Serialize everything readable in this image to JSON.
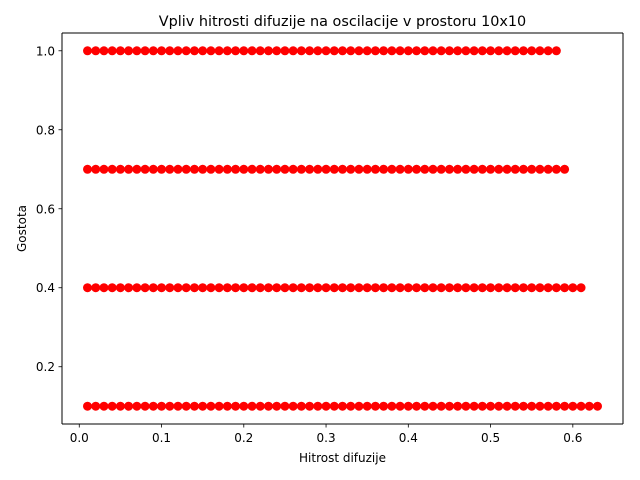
{
  "chart_data": {
    "type": "scatter",
    "title": "Vpliv hitrosti difuzije na oscilacije v prostoru 10x10",
    "xlabel": "Hitrost difuzije",
    "ylabel": "Gostota",
    "xlim": [
      -0.021,
      0.661
    ],
    "ylim": [
      0.055,
      1.045
    ],
    "x_ticks": [
      0.0,
      0.1,
      0.2,
      0.3,
      0.4,
      0.5,
      0.6
    ],
    "x_tick_labels": [
      "0.0",
      "0.1",
      "0.2",
      "0.3",
      "0.4",
      "0.5",
      "0.6"
    ],
    "y_ticks": [
      0.2,
      0.4,
      0.6,
      0.8,
      1.0
    ],
    "y_tick_labels": [
      "0.2",
      "0.4",
      "0.6",
      "0.8",
      "1.0"
    ],
    "grid": false,
    "legend": "none",
    "marker_color": "#ff0000",
    "series": [
      {
        "y": 0.1,
        "x_start": 0.01,
        "x_end": 0.63,
        "x_step": 0.01
      },
      {
        "y": 0.4,
        "x_start": 0.01,
        "x_end": 0.61,
        "x_step": 0.01
      },
      {
        "y": 0.7,
        "x_start": 0.01,
        "x_end": 0.59,
        "x_step": 0.01
      },
      {
        "y": 1.0,
        "x_start": 0.01,
        "x_end": 0.58,
        "x_step": 0.01
      }
    ]
  }
}
